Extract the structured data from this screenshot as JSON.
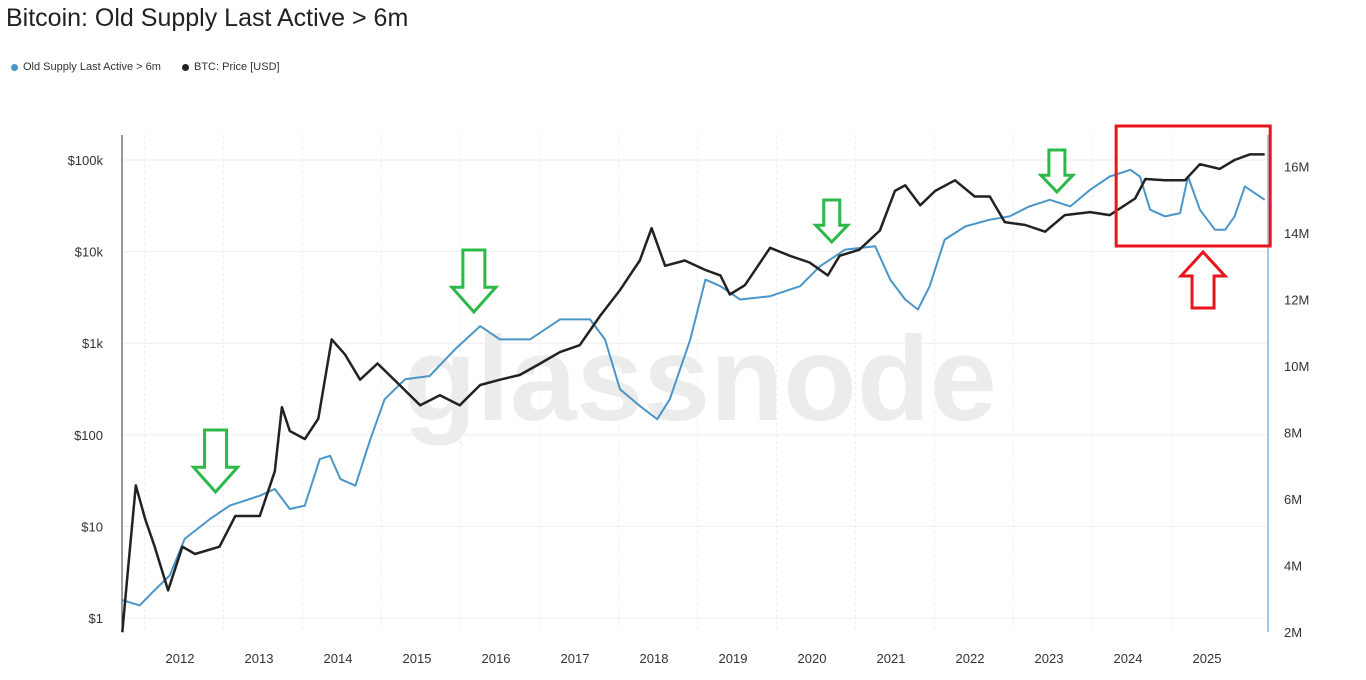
{
  "chart_data": {
    "type": "line",
    "title": "Bitcoin: Old Supply Last Active > 6m",
    "watermark": "glassnode",
    "legend_position": "top-left",
    "series": [
      {
        "name": "Old Supply Last Active > 6m",
        "color": "#4a96c8",
        "axis": "right",
        "points": [
          [
            2011.27,
            2.96
          ],
          [
            2011.49,
            2.8
          ],
          [
            2011.68,
            3.26
          ],
          [
            2011.87,
            3.7
          ],
          [
            2012.06,
            4.8
          ],
          [
            2012.38,
            5.4
          ],
          [
            2012.63,
            5.8
          ],
          [
            2013.01,
            6.1
          ],
          [
            2013.2,
            6.3
          ],
          [
            2013.39,
            5.7
          ],
          [
            2013.58,
            5.8
          ],
          [
            2013.77,
            7.2
          ],
          [
            2013.9,
            7.3
          ],
          [
            2014.03,
            6.6
          ],
          [
            2014.22,
            6.4
          ],
          [
            2014.41,
            7.8
          ],
          [
            2014.59,
            9.0
          ],
          [
            2014.85,
            9.6
          ],
          [
            2015.16,
            9.7
          ],
          [
            2015.48,
            10.5
          ],
          [
            2015.8,
            11.2
          ],
          [
            2016.05,
            10.8
          ],
          [
            2016.43,
            10.8
          ],
          [
            2016.81,
            11.4
          ],
          [
            2017.19,
            11.4
          ],
          [
            2017.38,
            10.8
          ],
          [
            2017.57,
            9.3
          ],
          [
            2017.82,
            8.8
          ],
          [
            2018.04,
            8.4
          ],
          [
            2018.2,
            9.0
          ],
          [
            2018.46,
            10.8
          ],
          [
            2018.65,
            12.6
          ],
          [
            2018.84,
            12.4
          ],
          [
            2019.09,
            12.0
          ],
          [
            2019.47,
            12.1
          ],
          [
            2019.85,
            12.4
          ],
          [
            2020.1,
            13.0
          ],
          [
            2020.42,
            13.5
          ],
          [
            2020.8,
            13.6
          ],
          [
            2020.99,
            12.6
          ],
          [
            2021.18,
            12.0
          ],
          [
            2021.34,
            11.7
          ],
          [
            2021.49,
            12.4
          ],
          [
            2021.68,
            13.8
          ],
          [
            2021.94,
            14.2
          ],
          [
            2022.25,
            14.4
          ],
          [
            2022.5,
            14.5
          ],
          [
            2022.75,
            14.8
          ],
          [
            2023.01,
            15.0
          ],
          [
            2023.27,
            14.8
          ],
          [
            2023.52,
            15.3
          ],
          [
            2023.77,
            15.7
          ],
          [
            2024.03,
            15.9
          ],
          [
            2024.15,
            15.7
          ],
          [
            2024.28,
            14.7
          ],
          [
            2024.47,
            14.5
          ],
          [
            2024.66,
            14.6
          ],
          [
            2024.76,
            15.7
          ],
          [
            2024.91,
            14.7
          ],
          [
            2025.1,
            14.1
          ],
          [
            2025.23,
            14.1
          ],
          [
            2025.35,
            14.5
          ],
          [
            2025.48,
            15.4
          ],
          [
            2025.73,
            15.0
          ]
        ]
      },
      {
        "name": "BTC: Price [USD]",
        "color": "#222222",
        "axis": "left",
        "points": [
          [
            2011.27,
            0.7
          ],
          [
            2011.34,
            3.3
          ],
          [
            2011.44,
            28
          ],
          [
            2011.56,
            12
          ],
          [
            2011.68,
            6
          ],
          [
            2011.85,
            2
          ],
          [
            2012.03,
            6
          ],
          [
            2012.19,
            5
          ],
          [
            2012.5,
            6
          ],
          [
            2012.7,
            13
          ],
          [
            2013.01,
            13
          ],
          [
            2013.2,
            40
          ],
          [
            2013.29,
            200
          ],
          [
            2013.39,
            110
          ],
          [
            2013.58,
            90
          ],
          [
            2013.75,
            150
          ],
          [
            2013.92,
            1100
          ],
          [
            2014.09,
            750
          ],
          [
            2014.28,
            400
          ],
          [
            2014.5,
            600
          ],
          [
            2014.78,
            350
          ],
          [
            2015.04,
            210
          ],
          [
            2015.29,
            270
          ],
          [
            2015.54,
            210
          ],
          [
            2015.8,
            350
          ],
          [
            2016.05,
            400
          ],
          [
            2016.3,
            450
          ],
          [
            2016.56,
            600
          ],
          [
            2016.81,
            800
          ],
          [
            2017.06,
            950
          ],
          [
            2017.32,
            2000
          ],
          [
            2017.57,
            3800
          ],
          [
            2017.82,
            8000
          ],
          [
            2017.97,
            18000
          ],
          [
            2018.14,
            7000
          ],
          [
            2018.39,
            8000
          ],
          [
            2018.65,
            6300
          ],
          [
            2018.84,
            5500
          ],
          [
            2018.96,
            3400
          ],
          [
            2019.15,
            4300
          ],
          [
            2019.47,
            11000
          ],
          [
            2019.72,
            9000
          ],
          [
            2019.97,
            7600
          ],
          [
            2020.2,
            5500
          ],
          [
            2020.35,
            9000
          ],
          [
            2020.6,
            10500
          ],
          [
            2020.86,
            17000
          ],
          [
            2021.05,
            46000
          ],
          [
            2021.18,
            53000
          ],
          [
            2021.37,
            32000
          ],
          [
            2021.56,
            46000
          ],
          [
            2021.81,
            60000
          ],
          [
            2022.06,
            40000
          ],
          [
            2022.25,
            40000
          ],
          [
            2022.44,
            21000
          ],
          [
            2022.7,
            19500
          ],
          [
            2022.95,
            16500
          ],
          [
            2023.2,
            25000
          ],
          [
            2023.52,
            27000
          ],
          [
            2023.77,
            25000
          ],
          [
            2024.09,
            38000
          ],
          [
            2024.22,
            62000
          ],
          [
            2024.47,
            60000
          ],
          [
            2024.72,
            60000
          ],
          [
            2024.91,
            90000
          ],
          [
            2025.16,
            80000
          ],
          [
            2025.35,
            100000
          ],
          [
            2025.54,
            115000
          ],
          [
            2025.73,
            115000
          ]
        ]
      }
    ],
    "x_ticks": [
      "2012",
      "2013",
      "2014",
      "2015",
      "2016",
      "2017",
      "2018",
      "2019",
      "2020",
      "2021",
      "2022",
      "2023",
      "2024",
      "2025"
    ],
    "y_left": {
      "scale": "log",
      "range": [
        1,
        150000
      ],
      "ticks": [
        {
          "v": 1,
          "label": "$1"
        },
        {
          "v": 10,
          "label": "$10"
        },
        {
          "v": 100,
          "label": "$100"
        },
        {
          "v": 1000,
          "label": "$1k"
        },
        {
          "v": 10000,
          "label": "$10k"
        },
        {
          "v": 100000,
          "label": "$100k"
        }
      ]
    },
    "y_right": {
      "scale": "linear",
      "range": [
        2,
        17
      ],
      "ticks": [
        {
          "v": 2,
          "label": "2M"
        },
        {
          "v": 4,
          "label": "4M"
        },
        {
          "v": 6,
          "label": "6M"
        },
        {
          "v": 8,
          "label": "8M"
        },
        {
          "v": 10,
          "label": "10M"
        },
        {
          "v": 12,
          "label": "12M"
        },
        {
          "v": 14,
          "label": "14M"
        },
        {
          "v": 16,
          "label": "16M"
        }
      ]
    },
    "annotations": {
      "green_down_arrows_at_years": [
        2012.45,
        2015.72,
        2020.25,
        2023.1
      ],
      "red_highlight_years": [
        2023.85,
        2025.8
      ],
      "red_up_arrow_year": 2024.95
    }
  }
}
